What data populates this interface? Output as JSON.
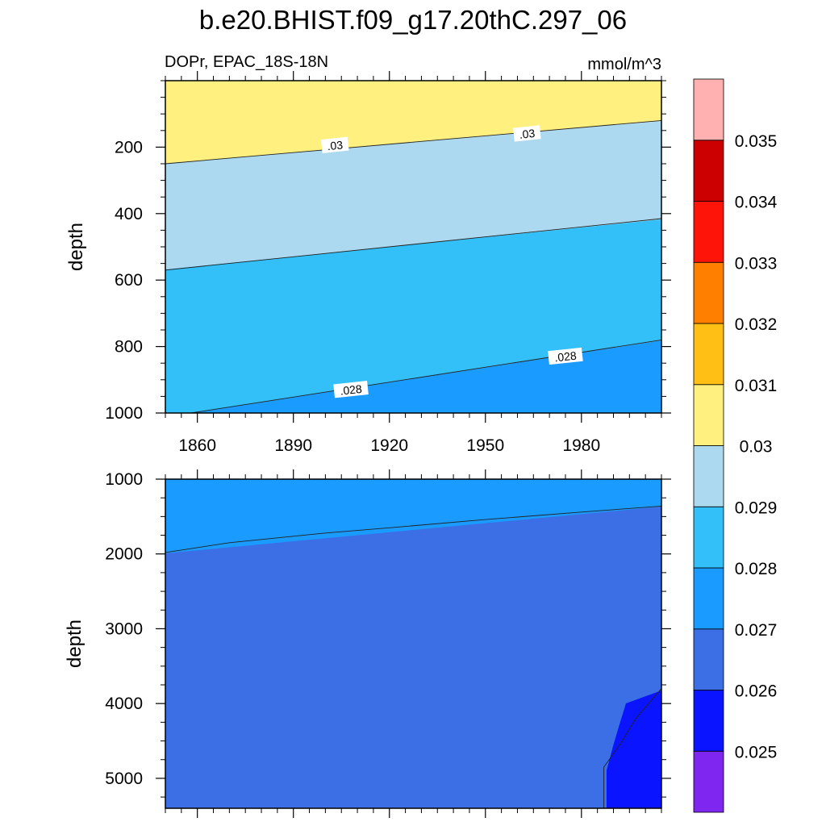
{
  "title": "b.e20.BHIST.f09_g17.20thC.297_06",
  "chart_data": [
    {
      "type": "contour",
      "name": "upper-panel",
      "left_label": "DOPr, EPAC_18S-18N",
      "right_label": "mmol/m^3",
      "ylabel": "depth",
      "xlim": [
        1850,
        2005
      ],
      "ylim": [
        0,
        1000
      ],
      "y_reversed": true,
      "x_ticks": [
        1860,
        1890,
        1920,
        1950,
        1980
      ],
      "y_ticks": [
        200,
        400,
        600,
        800,
        1000
      ],
      "contour_labels": [
        {
          "text": ".03",
          "x": 1903,
          "y": 195
        },
        {
          "text": ".03",
          "x": 1963,
          "y": 160
        },
        {
          "text": ".028",
          "x": 1908,
          "y": 930
        },
        {
          "text": ".028",
          "x": 1975,
          "y": 830
        }
      ],
      "contour_lines": [
        {
          "level": 0.03,
          "points": [
            [
              1850,
              250
            ],
            [
              2005,
              120
            ]
          ]
        },
        {
          "level": 0.029,
          "points": [
            [
              1850,
              570
            ],
            [
              2005,
              415
            ]
          ]
        },
        {
          "level": 0.028,
          "points": [
            [
              1858,
              1000
            ],
            [
              2005,
              780
            ]
          ]
        }
      ]
    },
    {
      "type": "contour",
      "name": "lower-panel",
      "ylabel": "depth",
      "xlim": [
        1850,
        2005
      ],
      "ylim": [
        1000,
        5400
      ],
      "y_reversed": true,
      "x_ticks": [
        1860,
        1890,
        1920,
        1950,
        1980
      ],
      "y_ticks": [
        1000,
        2000,
        3000,
        4000,
        5000
      ],
      "contour_lines": [
        {
          "level": 0.027,
          "points": [
            [
              1850,
              1980
            ],
            [
              1870,
              1850
            ],
            [
              1900,
              1720
            ],
            [
              1920,
              1650
            ],
            [
              1950,
              1540
            ],
            [
              1980,
              1440
            ],
            [
              2005,
              1360
            ]
          ]
        },
        {
          "level": 0.026,
          "points": [
            [
              1987,
              5400
            ],
            [
              1987,
              4850
            ],
            [
              1992,
              4550
            ],
            [
              1997,
              4200
            ],
            [
              2005,
              3800
            ]
          ]
        }
      ]
    }
  ],
  "colorbar": {
    "labels": [
      "0.025",
      "0.026",
      "0.027",
      "0.028",
      "0.029",
      "0.03",
      "0.031",
      "0.032",
      "0.033",
      "0.034",
      "0.035"
    ],
    "colors": [
      "#7f26f0",
      "#0a14ff",
      "#3c6fe6",
      "#1a9bff",
      "#33bff7",
      "#add9f0",
      "#fff080",
      "#ffbf14",
      "#ff7f00",
      "#ff140a",
      "#cc0000",
      "#ffb0b0"
    ]
  }
}
